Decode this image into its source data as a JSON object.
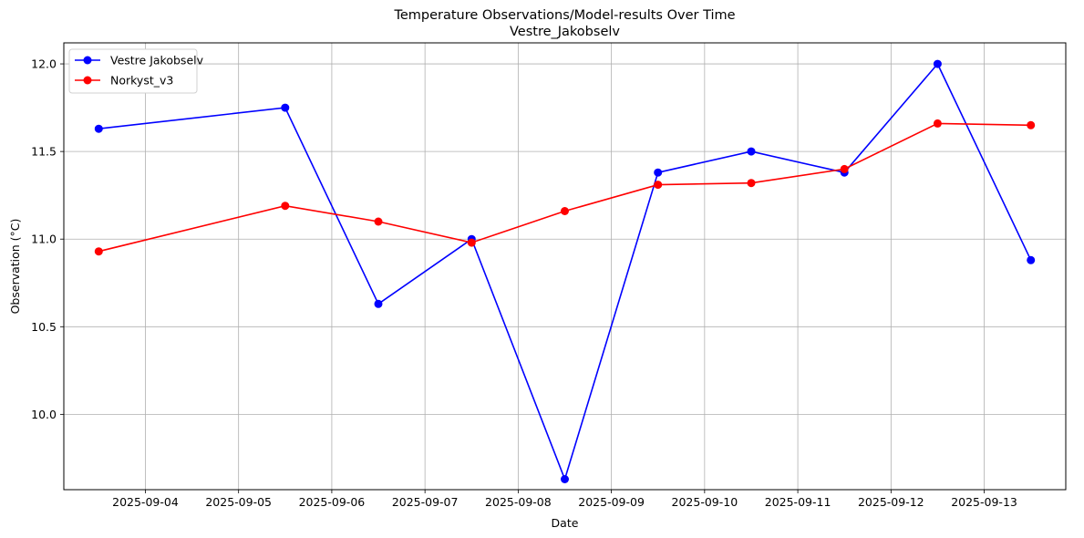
{
  "chart_data": {
    "type": "line",
    "title": "Temperature Observations/Model-results Over Time",
    "subtitle": "Vestre_Jakobselv",
    "xlabel": "Date",
    "ylabel": "Observation (°C)",
    "x_ticks": [
      "2025-09-04",
      "2025-09-05",
      "2025-09-06",
      "2025-09-07",
      "2025-09-08",
      "2025-09-09",
      "2025-09-10",
      "2025-09-11",
      "2025-09-12",
      "2025-09-13"
    ],
    "y_ticks": [
      10.0,
      10.5,
      11.0,
      11.5,
      12.0
    ],
    "y_tick_labels": [
      "10.0",
      "10.5",
      "11.0",
      "11.5",
      "12.0"
    ],
    "xlim": [
      "2025-09-03 03:00",
      "2025-09-13 21:00"
    ],
    "ylim": [
      9.57,
      12.12
    ],
    "grid": true,
    "legend_position": "top-left",
    "x": [
      "2025-09-03 12:00",
      "2025-09-05 12:00",
      "2025-09-06 12:00",
      "2025-09-07 12:00",
      "2025-09-08 12:00",
      "2025-09-09 12:00",
      "2025-09-10 12:00",
      "2025-09-11 12:00",
      "2025-09-12 12:00",
      "2025-09-13 12:00"
    ],
    "series": [
      {
        "name": "Vestre Jakobselv",
        "color": "#0000ff",
        "values": [
          11.63,
          11.75,
          10.63,
          11.0,
          9.63,
          11.38,
          11.5,
          11.38,
          12.0,
          10.88
        ]
      },
      {
        "name": "Norkyst_v3",
        "color": "#ff0000",
        "values": [
          10.93,
          11.19,
          11.1,
          10.98,
          11.16,
          11.31,
          11.32,
          11.4,
          11.66,
          11.65
        ]
      }
    ]
  }
}
